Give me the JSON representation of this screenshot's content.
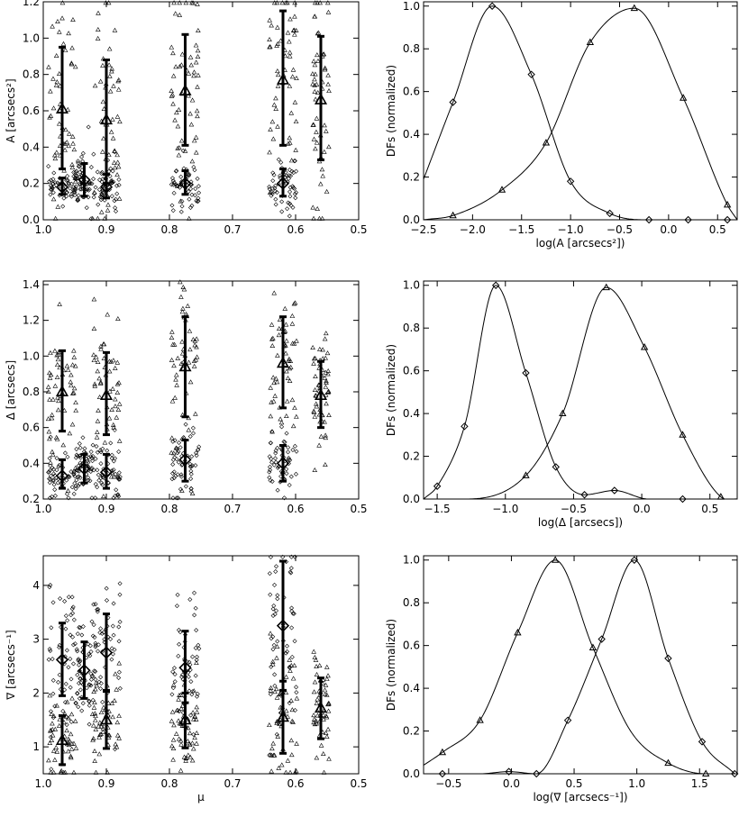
{
  "chart_data": [
    {
      "id": "p1l",
      "type": "scatter",
      "ylabel": "A [arcsecs²]",
      "xlim": [
        1.0,
        0.5
      ],
      "ylim": [
        0.0,
        1.2
      ],
      "xticks": [
        1.0,
        0.9,
        0.8,
        0.7,
        0.6,
        0.5
      ],
      "xticklabels": [
        "1.0",
        "0.9",
        "0.8",
        "0.7",
        "0.6",
        "0.5"
      ],
      "yticks": [
        0,
        0.2,
        0.4,
        0.6,
        0.8,
        1.0,
        1.2
      ],
      "yticklabels": [
        "0.0",
        "0.2",
        "0.4",
        "0.6",
        "0.8",
        "1.0",
        "1.2"
      ],
      "series": [
        {
          "marker": "triangle",
          "clusters": [
            {
              "mu": 0.97,
              "mean": 0.61,
              "err": [
                0.28,
                0.95
              ]
            },
            {
              "mu": 0.9,
              "mean": 0.55,
              "err": [
                0.2,
                0.88
              ]
            },
            {
              "mu": 0.775,
              "mean": 0.71,
              "err": [
                0.41,
                1.02
              ]
            },
            {
              "mu": 0.62,
              "mean": 0.77,
              "err": [
                0.41,
                1.15
              ]
            },
            {
              "mu": 0.56,
              "mean": 0.66,
              "err": [
                0.33,
                1.01
              ]
            }
          ]
        },
        {
          "marker": "diamond",
          "clusters": [
            {
              "mu": 0.97,
              "mean": 0.18,
              "err": [
                0.14,
                0.23
              ]
            },
            {
              "mu": 0.935,
              "mean": 0.22,
              "err": [
                0.13,
                0.31
              ]
            },
            {
              "mu": 0.9,
              "mean": 0.18,
              "err": [
                0.12,
                0.25
              ]
            },
            {
              "mu": 0.775,
              "mean": 0.2,
              "err": [
                0.14,
                0.27
              ]
            },
            {
              "mu": 0.62,
              "mean": 0.2,
              "err": [
                0.13,
                0.28
              ]
            }
          ]
        }
      ]
    },
    {
      "id": "p1r",
      "type": "line",
      "xlabel": "log(A [arcsecs²])",
      "ylabel": "DFs (normalized)",
      "xlim": [
        -2.5,
        0.7
      ],
      "ylim": [
        0,
        1.02
      ],
      "xticks": [
        -2.5,
        -2.0,
        -1.5,
        -1.0,
        -0.5,
        0.0,
        0.5
      ],
      "xticklabels": [
        "−2.5",
        "−2.0",
        "−1.5",
        "−1.0",
        "−0.5",
        "0.0",
        "0.5"
      ],
      "yticks": [
        0,
        0.2,
        0.4,
        0.6,
        0.8,
        1.0
      ],
      "yticklabels": [
        "0.0",
        "0.2",
        "0.4",
        "0.6",
        "0.8",
        "1.0"
      ],
      "series": [
        {
          "marker": "diamond",
          "x": [
            -2.5,
            -2.2,
            -1.8,
            -1.4,
            -1.0,
            -0.6,
            -0.2,
            0.2,
            0.7
          ],
          "y": [
            0.19,
            0.55,
            1.0,
            0.68,
            0.18,
            0.03,
            0.0,
            0.0,
            0.0
          ],
          "marks": [
            -2.2,
            -1.8,
            -1.4,
            -1.0,
            -0.6,
            -0.2,
            0.2,
            0.6
          ]
        },
        {
          "marker": "triangle",
          "x": [
            -2.5,
            -2.2,
            -1.7,
            -1.25,
            -0.8,
            -0.35,
            0.15,
            0.6,
            0.7
          ],
          "y": [
            0.0,
            0.02,
            0.14,
            0.36,
            0.83,
            0.99,
            0.57,
            0.07,
            0.0
          ],
          "marks": [
            -2.2,
            -1.7,
            -1.25,
            -0.8,
            -0.35,
            0.15,
            0.6
          ]
        }
      ]
    },
    {
      "id": "p2l",
      "type": "scatter",
      "ylabel": "Δ [arcsecs]",
      "xlim": [
        1.0,
        0.5
      ],
      "ylim": [
        0.2,
        1.42
      ],
      "xticks": [
        1.0,
        0.9,
        0.8,
        0.7,
        0.6,
        0.5
      ],
      "xticklabels": [
        "1.0",
        "0.9",
        "0.8",
        "0.7",
        "0.6",
        "0.5"
      ],
      "yticks": [
        0.2,
        0.4,
        0.6,
        0.8,
        1.0,
        1.2,
        1.4
      ],
      "yticklabels": [
        "0.2",
        "0.4",
        "0.6",
        "0.8",
        "1.0",
        "1.2",
        "1.4"
      ],
      "series": [
        {
          "marker": "triangle",
          "clusters": [
            {
              "mu": 0.97,
              "mean": 0.8,
              "err": [
                0.58,
                1.03
              ]
            },
            {
              "mu": 0.9,
              "mean": 0.78,
              "err": [
                0.56,
                1.02
              ]
            },
            {
              "mu": 0.775,
              "mean": 0.94,
              "err": [
                0.66,
                1.22
              ]
            },
            {
              "mu": 0.62,
              "mean": 0.96,
              "err": [
                0.71,
                1.22
              ]
            },
            {
              "mu": 0.56,
              "mean": 0.78,
              "err": [
                0.6,
                0.97
              ]
            }
          ]
        },
        {
          "marker": "diamond",
          "clusters": [
            {
              "mu": 0.97,
              "mean": 0.33,
              "err": [
                0.26,
                0.42
              ]
            },
            {
              "mu": 0.935,
              "mean": 0.37,
              "err": [
                0.29,
                0.45
              ]
            },
            {
              "mu": 0.9,
              "mean": 0.35,
              "err": [
                0.26,
                0.45
              ]
            },
            {
              "mu": 0.775,
              "mean": 0.42,
              "err": [
                0.3,
                0.53
              ]
            },
            {
              "mu": 0.62,
              "mean": 0.4,
              "err": [
                0.3,
                0.5
              ]
            }
          ]
        }
      ]
    },
    {
      "id": "p2r",
      "type": "line",
      "xlabel": "log(Δ [arcsecs])",
      "ylabel": "DFs (normalized)",
      "xlim": [
        -1.6,
        0.7
      ],
      "ylim": [
        0,
        1.02
      ],
      "xticks": [
        -1.5,
        -1.0,
        -0.5,
        0.0,
        0.5
      ],
      "xticklabels": [
        "−1.5",
        "−1.0",
        "−0.5",
        "0.0",
        "0.5"
      ],
      "yticks": [
        0,
        0.2,
        0.4,
        0.6,
        0.8,
        1.0
      ],
      "yticklabels": [
        "0.0",
        "0.2",
        "0.4",
        "0.6",
        "0.8",
        "1.0"
      ],
      "series": [
        {
          "marker": "diamond",
          "x": [
            -1.6,
            -1.5,
            -1.3,
            -1.07,
            -0.85,
            -0.63,
            -0.42,
            -0.2,
            0.05,
            0.3,
            0.7
          ],
          "y": [
            0.0,
            0.06,
            0.34,
            1.0,
            0.59,
            0.15,
            0.02,
            0.04,
            0.0,
            0.0,
            0.0
          ],
          "marks": [
            -1.5,
            -1.3,
            -1.07,
            -0.85,
            -0.63,
            -0.42,
            -0.2,
            0.3
          ]
        },
        {
          "marker": "triangle",
          "x": [
            -1.6,
            -1.3,
            -0.85,
            -0.58,
            -0.26,
            0.02,
            0.3,
            0.58,
            0.7
          ],
          "y": [
            0.0,
            0.0,
            0.11,
            0.4,
            0.99,
            0.71,
            0.3,
            0.01,
            0.0
          ],
          "marks": [
            -0.85,
            -0.58,
            -0.26,
            0.02,
            0.3,
            0.58
          ]
        }
      ]
    },
    {
      "id": "p3l",
      "type": "scatter",
      "xlabel": "μ",
      "ylabel": "∇ [arcsecs⁻¹]",
      "xlim": [
        1.0,
        0.5
      ],
      "ylim": [
        0.5,
        4.55
      ],
      "xticks": [
        1.0,
        0.9,
        0.8,
        0.7,
        0.6,
        0.5
      ],
      "xticklabels": [
        "1.0",
        "0.9",
        "0.8",
        "0.7",
        "0.6",
        "0.5"
      ],
      "yticks": [
        1,
        2,
        3,
        4
      ],
      "yticklabels": [
        "1",
        "2",
        "3",
        "4"
      ],
      "series": [
        {
          "marker": "diamond",
          "clusters": [
            {
              "mu": 0.97,
              "mean": 2.62,
              "err": [
                1.95,
                3.3
              ]
            },
            {
              "mu": 0.935,
              "mean": 2.42,
              "err": [
                1.9,
                2.95
              ]
            },
            {
              "mu": 0.9,
              "mean": 2.75,
              "err": [
                2.05,
                3.47
              ]
            },
            {
              "mu": 0.775,
              "mean": 2.47,
              "err": [
                1.82,
                3.15
              ]
            },
            {
              "mu": 0.62,
              "mean": 3.25,
              "err": [
                2.05,
                4.45
              ]
            }
          ]
        },
        {
          "marker": "triangle",
          "clusters": [
            {
              "mu": 0.97,
              "mean": 1.12,
              "err": [
                0.67,
                1.58
              ]
            },
            {
              "mu": 0.9,
              "mean": 1.5,
              "err": [
                0.97,
                2.03
              ]
            },
            {
              "mu": 0.775,
              "mean": 1.5,
              "err": [
                0.98,
                2.0
              ]
            },
            {
              "mu": 0.62,
              "mean": 1.55,
              "err": [
                0.88,
                2.22
              ]
            },
            {
              "mu": 0.56,
              "mean": 1.72,
              "err": [
                1.15,
                2.28
              ]
            }
          ]
        }
      ]
    },
    {
      "id": "p3r",
      "type": "line",
      "xlabel": "log(∇ [arcsecs⁻¹])",
      "ylabel": "DFs (normalized)",
      "xlim": [
        -0.7,
        1.8
      ],
      "ylim": [
        0,
        1.02
      ],
      "xticks": [
        -0.5,
        0.0,
        0.5,
        1.0,
        1.5
      ],
      "xticklabels": [
        "−0.5",
        "0.0",
        "0.5",
        "1.0",
        "1.5"
      ],
      "yticks": [
        0,
        0.2,
        0.4,
        0.6,
        0.8,
        1.0
      ],
      "yticklabels": [
        "0.0",
        "0.2",
        "0.4",
        "0.6",
        "0.8",
        "1.0"
      ],
      "series": [
        {
          "marker": "triangle",
          "x": [
            -0.7,
            -0.55,
            -0.25,
            0.05,
            0.35,
            0.65,
            0.95,
            1.25,
            1.55,
            1.8
          ],
          "y": [
            0.04,
            0.1,
            0.25,
            0.66,
            1.0,
            0.59,
            0.2,
            0.05,
            0.0,
            0.0
          ],
          "marks": [
            -0.55,
            -0.25,
            0.05,
            0.35,
            0.65,
            1.25,
            1.55
          ]
        },
        {
          "marker": "diamond",
          "x": [
            -0.7,
            -0.55,
            -0.25,
            -0.02,
            0.2,
            0.45,
            0.72,
            0.98,
            1.25,
            1.52,
            1.78
          ],
          "y": [
            0.0,
            0.0,
            0.0,
            0.01,
            0.0,
            0.25,
            0.63,
            1.0,
            0.54,
            0.15,
            0.0
          ],
          "marks": [
            -0.55,
            -0.02,
            0.2,
            0.45,
            0.72,
            0.98,
            1.25,
            1.52,
            1.78
          ]
        }
      ]
    }
  ]
}
